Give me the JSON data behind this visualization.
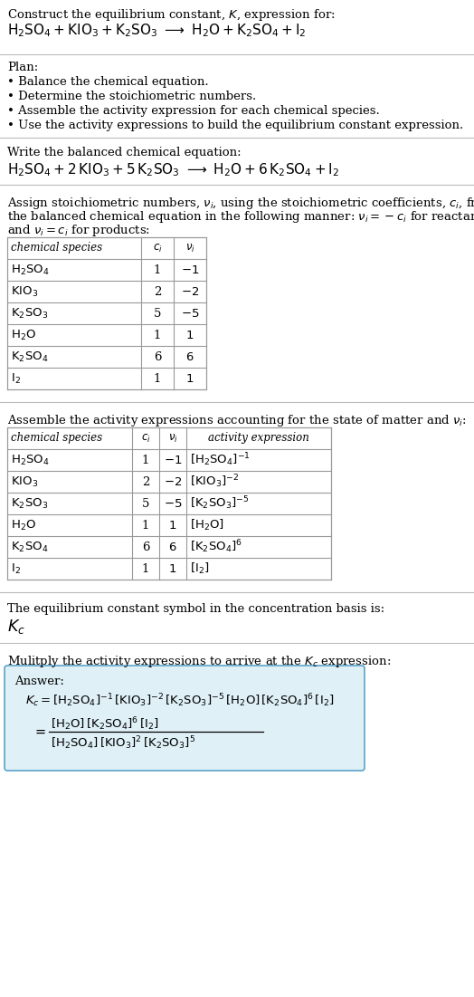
{
  "title_line1": "Construct the equilibrium constant, $K$, expression for:",
  "title_line2_plain": "H₂SO₄ + KIO₃ + K₂SO₃  →  H₂O + K₂SO₄ + I₂",
  "plan_header": "Plan:",
  "plan_items": [
    "• Balance the chemical equation.",
    "• Determine the stoichiometric numbers.",
    "• Assemble the activity expression for each chemical species.",
    "• Use the activity expressions to build the equilibrium constant expression."
  ],
  "balanced_header": "Write the balanced chemical equation:",
  "stoich_text1": "Assign stoichiometric numbers, $\\nu_i$, using the stoichiometric coefficients, $c_i$, from",
  "stoich_text2": "the balanced chemical equation in the following manner: $\\nu_i = -c_i$ for reactants",
  "stoich_text3": "and $\\nu_i = c_i$ for products:",
  "table1_headers": [
    "chemical species",
    "$c_i$",
    "$\\nu_i$"
  ],
  "table1_rows": [
    [
      "$\\mathrm{H_2SO_4}$",
      "1",
      "$-1$"
    ],
    [
      "$\\mathrm{KIO_3}$",
      "2",
      "$-2$"
    ],
    [
      "$\\mathrm{K_2SO_3}$",
      "5",
      "$-5$"
    ],
    [
      "$\\mathrm{H_2O}$",
      "1",
      "$1$"
    ],
    [
      "$\\mathrm{K_2SO_4}$",
      "6",
      "$6$"
    ],
    [
      "$\\mathrm{I_2}$",
      "1",
      "$1$"
    ]
  ],
  "activity_header": "Assemble the activity expressions accounting for the state of matter and $\\nu_i$:",
  "table2_headers": [
    "chemical species",
    "$c_i$",
    "$\\nu_i$",
    "activity expression"
  ],
  "table2_rows": [
    [
      "$\\mathrm{H_2SO_4}$",
      "1",
      "$-1$",
      "$[\\mathrm{H_2SO_4}]^{-1}$"
    ],
    [
      "$\\mathrm{KIO_3}$",
      "2",
      "$-2$",
      "$[\\mathrm{KIO_3}]^{-2}$"
    ],
    [
      "$\\mathrm{K_2SO_3}$",
      "5",
      "$-5$",
      "$[\\mathrm{K_2SO_3}]^{-5}$"
    ],
    [
      "$\\mathrm{H_2O}$",
      "1",
      "$1$",
      "$[\\mathrm{H_2O}]$"
    ],
    [
      "$\\mathrm{K_2SO_4}$",
      "6",
      "$6$",
      "$[\\mathrm{K_2SO_4}]^{6}$"
    ],
    [
      "$\\mathrm{I_2}$",
      "1",
      "$1$",
      "$[\\mathrm{I_2}]$"
    ]
  ],
  "kc_text": "The equilibrium constant symbol in the concentration basis is:",
  "kc_symbol": "$K_c$",
  "multiply_text": "Mulitply the activity expressions to arrive at the $K_c$ expression:",
  "answer_label": "Answer:",
  "answer_line1": "$K_c = [\\mathrm{H_2SO_4}]^{-1}\\,[\\mathrm{KIO_3}]^{-2}\\,[\\mathrm{K_2SO_3}]^{-5}\\,[\\mathrm{H_2O}]\\,[\\mathrm{K_2SO_4}]^{6}\\,[\\mathrm{I_2}]$",
  "answer_eq_num": "$[\\mathrm{H_2O}]\\,[\\mathrm{K_2SO_4}]^{6}\\,[\\mathrm{I_2}]$",
  "answer_eq_den": "$[\\mathrm{H_2SO_4}]\\,[\\mathrm{KIO_3}]^{2}\\,[\\mathrm{K_2SO_3}]^{5}$",
  "bg_color": "#ffffff",
  "text_color": "#000000",
  "table_border_color": "#999999",
  "answer_box_fill": "#dff0f7",
  "answer_box_border": "#5ba3c9",
  "font_size": 9.5,
  "small_font": 8.5
}
